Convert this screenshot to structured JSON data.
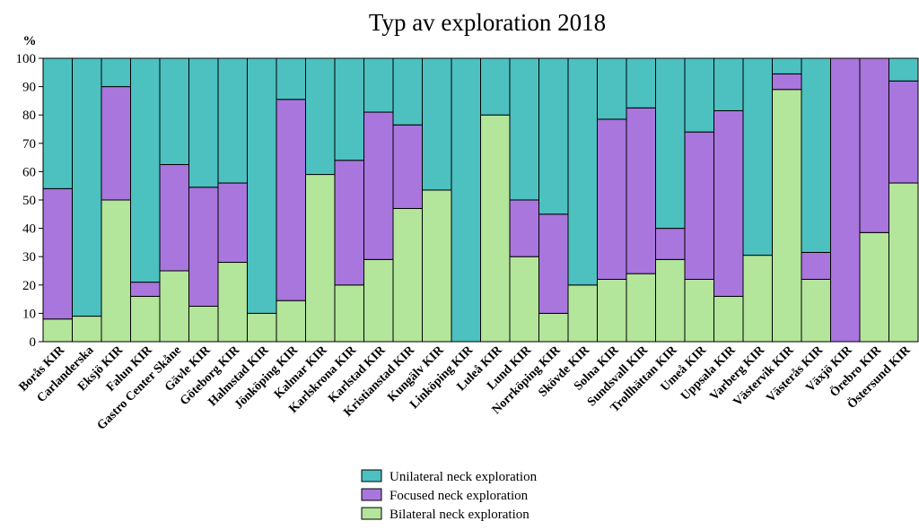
{
  "chart_data": {
    "type": "bar",
    "stacked": true,
    "title": "Typ av exploration 2018",
    "ylabel": "%",
    "xlabel": "",
    "ylim": [
      0,
      100
    ],
    "yticks": [
      "0",
      "10",
      "20",
      "30",
      "40",
      "50",
      "60",
      "70",
      "80",
      "90",
      "100"
    ],
    "categories": [
      "Borås KIR",
      "Carlanderska",
      "Eksjö KIR",
      "Falun KIR",
      "Gastro Center Skåne",
      "Gävle KIR",
      "Göteborg KIR",
      "Halmstad KIR",
      "Jönköping KIR",
      "Kalmar KIR",
      "Karlskrona KIR",
      "Karlstad KIR",
      "Kristianstad KIR",
      "Kungälv KIR",
      "Linköping KIR",
      "Luleå KIR",
      "Lund KIR",
      "Norrköping KIR",
      "Skövde KIR",
      "Solna KIR",
      "Sundsvall KIR",
      "Trollhättan KIR",
      "Umeå KIR",
      "Uppsala KIR",
      "Varberg KIR",
      "Västervik KIR",
      "Västerås KIR",
      "Växjö KIR",
      "Örebro KIR",
      "Östersund KIR"
    ],
    "series": [
      {
        "name": "Bilateral neck exploration",
        "color": "#b3e59b",
        "values": [
          8,
          9,
          50,
          16,
          25,
          12.5,
          28,
          10,
          14.5,
          59,
          20,
          29,
          47,
          53.5,
          0,
          80,
          30,
          10,
          20,
          22,
          24,
          29,
          22,
          16,
          30.5,
          89,
          22,
          0,
          38.5,
          56
        ]
      },
      {
        "name": "Focused neck exploration",
        "color": "#a876dc",
        "values": [
          46,
          0,
          40,
          5,
          37.5,
          42,
          28,
          0,
          71,
          0,
          44,
          52,
          29.5,
          0,
          0,
          0,
          20,
          35,
          0,
          56.5,
          58.5,
          11,
          52,
          65.5,
          0,
          5.5,
          9.5,
          100,
          61.5,
          36
        ]
      },
      {
        "name": "Unilateral neck exploration",
        "color": "#4dc0c0",
        "values": [
          46,
          91,
          10,
          79,
          37.5,
          45.5,
          44,
          90,
          14.5,
          41,
          36,
          19,
          23.5,
          46.5,
          100,
          20,
          50,
          55,
          80,
          21.5,
          17.5,
          60,
          26,
          18.5,
          69.5,
          5.5,
          68.5,
          0,
          0,
          8
        ]
      }
    ],
    "legend": {
      "position": "bottom-center",
      "entries": [
        "Unilateral neck exploration",
        "Focused neck exploration",
        "Bilateral neck exploration"
      ]
    }
  }
}
